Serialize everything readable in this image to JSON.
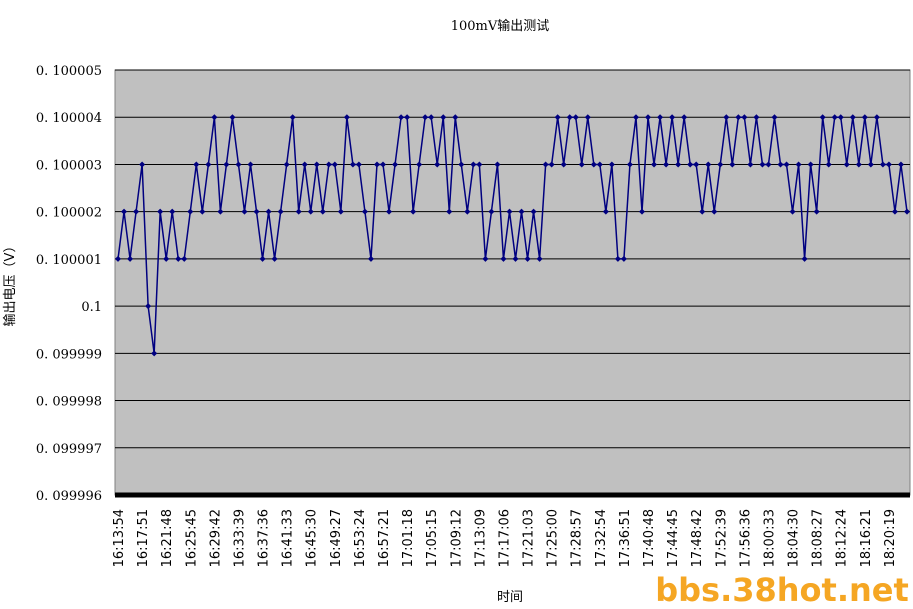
{
  "chart_data": {
    "type": "line",
    "title": "100mV输出测试",
    "y_label": "输出电压（V）",
    "x_label": "时间",
    "watermark": "bbs.38hot.net",
    "categories": [
      "16:13:54",
      null,
      null,
      null,
      "16:17:51",
      null,
      null,
      null,
      "16:21:48",
      null,
      null,
      null,
      "16:25:45",
      null,
      null,
      null,
      "16:29:42",
      null,
      null,
      null,
      "16:33:39",
      null,
      null,
      null,
      "16:37:36",
      null,
      null,
      null,
      "16:41:33",
      null,
      null,
      null,
      "16:45:30",
      null,
      null,
      null,
      "16:49:27",
      null,
      null,
      null,
      "16:53:24",
      null,
      null,
      null,
      "16:57:21",
      null,
      null,
      null,
      "17:01:18",
      null,
      null,
      null,
      "17:05:15",
      null,
      null,
      null,
      "17:09:12",
      null,
      null,
      null,
      "17:13:09",
      null,
      null,
      null,
      "17:17:06",
      null,
      null,
      null,
      "17:21:03",
      null,
      null,
      null,
      "17:25:00",
      null,
      null,
      null,
      "17:28:57",
      null,
      null,
      null,
      "17:32:54",
      null,
      null,
      null,
      "17:36:51",
      null,
      null,
      null,
      "17:40:48",
      null,
      null,
      null,
      "17:44:45",
      null,
      null,
      null,
      "17:48:42",
      null,
      null,
      null,
      "17:52:39",
      null,
      null,
      null,
      "17:56:36",
      null,
      null,
      null,
      "18:00:33",
      null,
      null,
      null,
      "18:04:30",
      null,
      null,
      null,
      "18:08:27",
      null,
      null,
      null,
      "18:12:24",
      null,
      null,
      null,
      "18:16:21",
      null,
      null,
      null,
      "18:20:19",
      null,
      null,
      null
    ],
    "series": [
      {
        "name": "输出电压",
        "color": "#000080",
        "values": [
          0.100001,
          0.100002,
          0.100001,
          0.100002,
          0.100003,
          0.1,
          0.099999,
          0.100002,
          0.100001,
          0.100002,
          0.100001,
          0.100001,
          0.100002,
          0.100003,
          0.100002,
          0.100003,
          0.100004,
          0.100002,
          0.100003,
          0.100004,
          0.100003,
          0.100002,
          0.100003,
          0.100002,
          0.100001,
          0.100002,
          0.100001,
          0.100002,
          0.100003,
          0.100004,
          0.100002,
          0.100003,
          0.100002,
          0.100003,
          0.100002,
          0.100003,
          0.100003,
          0.100002,
          0.100004,
          0.100003,
          0.100003,
          0.100002,
          0.100001,
          0.100003,
          0.100003,
          0.100002,
          0.100003,
          0.100004,
          0.100004,
          0.100002,
          0.100003,
          0.100004,
          0.100004,
          0.100003,
          0.100004,
          0.100002,
          0.100004,
          0.100003,
          0.100002,
          0.100003,
          0.100003,
          0.100001,
          0.100002,
          0.100003,
          0.100001,
          0.100002,
          0.100001,
          0.100002,
          0.100001,
          0.100002,
          0.100001,
          0.100003,
          0.100003,
          0.100004,
          0.100003,
          0.100004,
          0.100004,
          0.100003,
          0.100004,
          0.100003,
          0.100003,
          0.100002,
          0.100003,
          0.100001,
          0.100001,
          0.100003,
          0.100004,
          0.100002,
          0.100004,
          0.100003,
          0.100004,
          0.100003,
          0.100004,
          0.100003,
          0.100004,
          0.100003,
          0.100003,
          0.100002,
          0.100003,
          0.100002,
          0.100003,
          0.100004,
          0.100003,
          0.100004,
          0.100004,
          0.100003,
          0.100004,
          0.100003,
          0.100003,
          0.100004,
          0.100003,
          0.100003,
          0.100002,
          0.100003,
          0.100001,
          0.100003,
          0.100002,
          0.100004,
          0.100003,
          0.100004,
          0.100004,
          0.100003,
          0.100004,
          0.100003,
          0.100004,
          0.100003,
          0.100004,
          0.100003,
          0.100003,
          0.100002,
          0.100003,
          0.100002
        ]
      }
    ],
    "ylim": [
      0.099996,
      0.100005
    ],
    "yticks": [
      {
        "value": 0.099996,
        "label": "0. 099996"
      },
      {
        "value": 0.099997,
        "label": "0. 099997"
      },
      {
        "value": 0.099998,
        "label": "0. 099998"
      },
      {
        "value": 0.099999,
        "label": "0. 099999"
      },
      0.1,
      {
        "value": 0.100001,
        "label": "0. 100001"
      },
      {
        "value": 0.100002,
        "label": "0. 100002"
      },
      {
        "value": 0.100003,
        "label": "0. 100003"
      },
      {
        "value": 0.100004,
        "label": "0. 100004"
      },
      {
        "value": 0.100005,
        "label": "0. 100005"
      }
    ],
    "grid": true
  }
}
